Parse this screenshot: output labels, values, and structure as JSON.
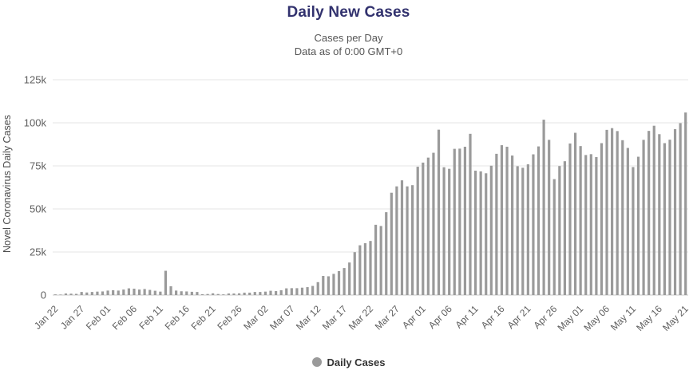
{
  "chart_data": {
    "type": "bar",
    "title": "Daily New Cases",
    "subtitle_line1": "Cases per Day",
    "subtitle_line2": "Data as of 0:00 GMT+0",
    "ylabel": "Novel Coronavirus Daily Cases",
    "legend_label": "Daily Cases",
    "legend_position": "bottom",
    "grid": true,
    "bar_color": "#9a9a9a",
    "axis_text_color": "#606060",
    "ylim": [
      0,
      125000
    ],
    "ytick_values": [
      0,
      25000,
      50000,
      75000,
      100000,
      125000
    ],
    "ytick_labels": [
      "0",
      "25k",
      "50k",
      "75k",
      "100k",
      "125k"
    ],
    "xtick_interval": 5,
    "xtick_labels": [
      "Jan 22",
      "Jan 27",
      "Feb 01",
      "Feb 06",
      "Feb 11",
      "Feb 16",
      "Feb 21",
      "Feb 26",
      "Mar 02",
      "Mar 07",
      "Mar 12",
      "Mar 17",
      "Mar 22",
      "Mar 27",
      "Apr 01",
      "Apr 06",
      "Apr 11",
      "Apr 16",
      "Apr 21",
      "Apr 26",
      "May 01",
      "May 06",
      "May 11",
      "May 16",
      "May 21"
    ],
    "values": [
      400,
      300,
      900,
      800,
      700,
      1800,
      1500,
      1800,
      2000,
      2100,
      2600,
      2800,
      2600,
      3200,
      3900,
      3700,
      3200,
      3500,
      3000,
      2500,
      2000,
      14100,
      5100,
      2600,
      2200,
      2100,
      1900,
      1800,
      500,
      600,
      1000,
      600,
      400,
      900,
      900,
      1000,
      1400,
      1400,
      1800,
      1800,
      2000,
      2500,
      2300,
      2800,
      3900,
      4000,
      4000,
      4300,
      4600,
      5300,
      7500,
      11100,
      10900,
      12300,
      13900,
      15700,
      18900,
      24900,
      28900,
      30100,
      31400,
      40800,
      40100,
      48100,
      59400,
      63100,
      66600,
      63100,
      63800,
      74500,
      76900,
      79800,
      82600,
      96000,
      74200,
      73300,
      84900,
      85000,
      86100,
      93600,
      72200,
      71800,
      70700,
      75100,
      82000,
      87000,
      86100,
      81000,
      74800,
      73900,
      75900,
      81700,
      86300,
      101800,
      90100,
      67300,
      74900,
      77700,
      88000,
      94200,
      86500,
      81300,
      81800,
      80100,
      88200,
      95900,
      96900,
      95200,
      89900,
      85400,
      74300,
      80300,
      90100,
      95300,
      98300,
      93400,
      88200,
      90200,
      96300,
      99800,
      106000
    ]
  }
}
